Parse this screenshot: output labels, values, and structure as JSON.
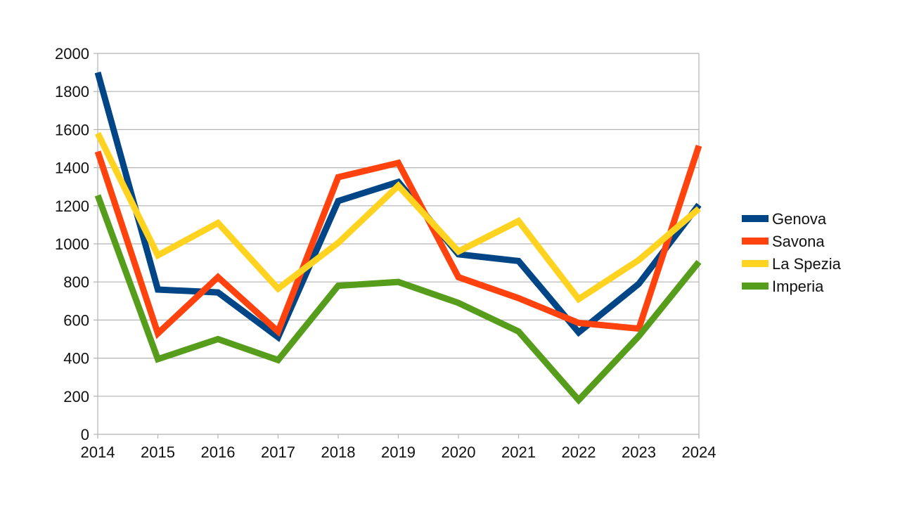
{
  "chart_data": {
    "type": "line",
    "title": "",
    "xlabel": "",
    "ylabel": "",
    "x": [
      "2014",
      "2015",
      "2016",
      "2017",
      "2018",
      "2019",
      "2020",
      "2021",
      "2022",
      "2023",
      "2024"
    ],
    "ylim": [
      0,
      2000
    ],
    "yticks": [
      "0",
      "200",
      "400",
      "600",
      "800",
      "1000",
      "1200",
      "1400",
      "1600",
      "1800",
      "2000"
    ],
    "grid": true,
    "legend_position": "right",
    "series": [
      {
        "name": "Genova",
        "color": "#004586",
        "values": [
          1900,
          760,
          745,
          510,
          1225,
          1325,
          945,
          910,
          535,
          790,
          1205
        ]
      },
      {
        "name": "Savona",
        "color": "#ff420e",
        "values": [
          1485,
          530,
          825,
          540,
          1350,
          1425,
          825,
          715,
          585,
          555,
          1515
        ]
      },
      {
        "name": "La Spezia",
        "color": "#ffd320",
        "values": [
          1580,
          940,
          1110,
          765,
          1005,
          1305,
          960,
          1120,
          710,
          915,
          1185
        ]
      },
      {
        "name": "Imperia",
        "color": "#579d1c",
        "values": [
          1255,
          395,
          500,
          390,
          780,
          800,
          690,
          540,
          180,
          515,
          905
        ]
      }
    ]
  }
}
